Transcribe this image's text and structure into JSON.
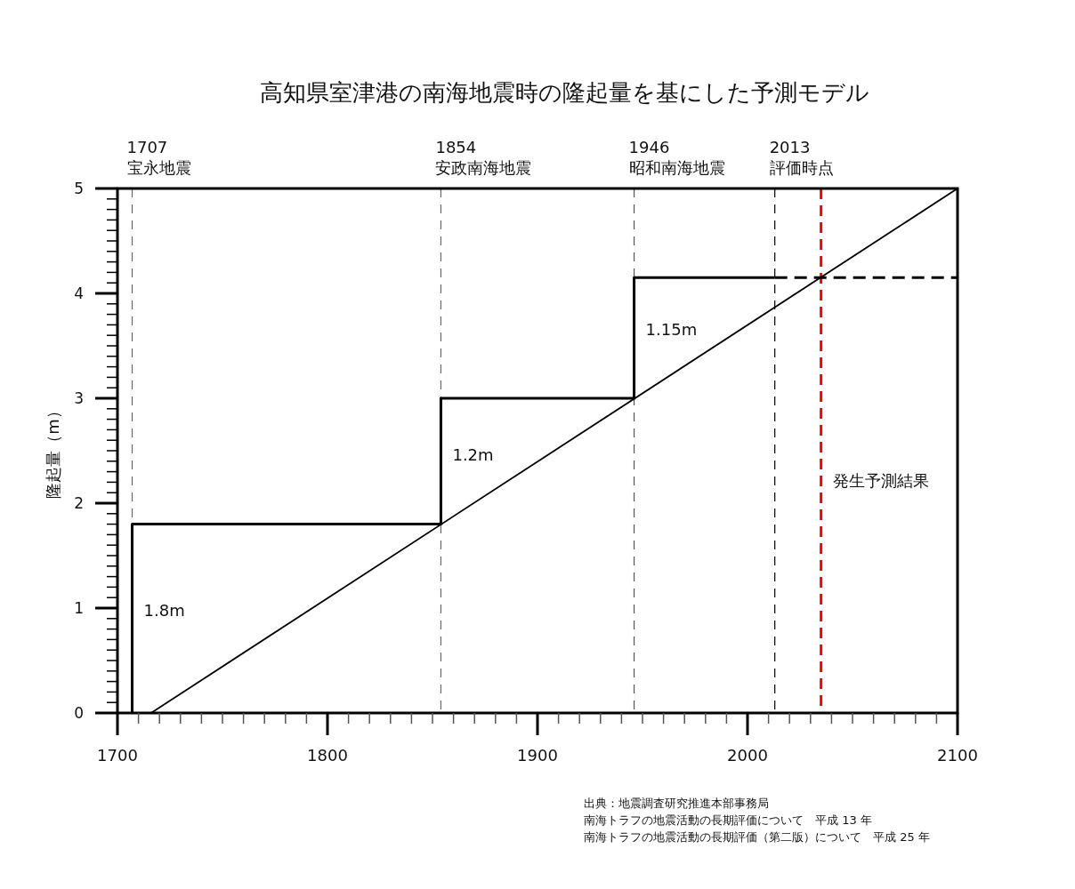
{
  "chart_data": {
    "type": "line",
    "title": "高知県室津港の南海地震時の隆起量を基にした予測モデル",
    "ylabel": "隆起量（m）",
    "xlim": [
      1700,
      2100
    ],
    "ylim": [
      0,
      5
    ],
    "xticks": [
      1700,
      {
        "value": 1710,
        "label": null
      },
      {
        "value": 1720,
        "label": null
      },
      {
        "value": 1730,
        "label": null
      },
      {
        "value": 1740,
        "label": null
      },
      {
        "value": 1750,
        "label": null
      },
      {
        "value": 1760,
        "label": null
      },
      {
        "value": 1770,
        "label": null
      },
      {
        "value": 1780,
        "label": null
      },
      {
        "value": 1790,
        "label": null
      },
      1800,
      {
        "value": 1810,
        "label": null
      },
      {
        "value": 1820,
        "label": null
      },
      {
        "value": 1830,
        "label": null
      },
      {
        "value": 1840,
        "label": null
      },
      {
        "value": 1850,
        "label": null
      },
      {
        "value": 1860,
        "label": null
      },
      {
        "value": 1870,
        "label": null
      },
      {
        "value": 1880,
        "label": null
      },
      {
        "value": 1890,
        "label": null
      },
      1900,
      {
        "value": 1910,
        "label": null
      },
      {
        "value": 1920,
        "label": null
      },
      {
        "value": 1930,
        "label": null
      },
      {
        "value": 1940,
        "label": null
      },
      {
        "value": 1950,
        "label": null
      },
      {
        "value": 1960,
        "label": null
      },
      {
        "value": 1970,
        "label": null
      },
      {
        "value": 1980,
        "label": null
      },
      {
        "value": 1990,
        "label": null
      },
      2000,
      {
        "value": 2010,
        "label": null
      },
      {
        "value": 2020,
        "label": null
      },
      {
        "value": 2030,
        "label": null
      },
      {
        "value": 2040,
        "label": null
      },
      {
        "value": 2050,
        "label": null
      },
      {
        "value": 2060,
        "label": null
      },
      {
        "value": 2070,
        "label": null
      },
      {
        "value": 2080,
        "label": null
      },
      {
        "value": 2090,
        "label": null
      },
      2100
    ],
    "yticks": [
      0,
      {
        "value": 0.1,
        "label": null
      },
      {
        "value": 0.2,
        "label": null
      },
      {
        "value": 0.3,
        "label": null
      },
      {
        "value": 0.4,
        "label": null
      },
      {
        "value": 0.5,
        "label": null
      },
      {
        "value": 0.6,
        "label": null
      },
      {
        "value": 0.7,
        "label": null
      },
      {
        "value": 0.8,
        "label": null
      },
      {
        "value": 0.9,
        "label": null
      },
      1,
      {
        "value": 1.1,
        "label": null
      },
      {
        "value": 1.2,
        "label": null
      },
      {
        "value": 1.3,
        "label": null
      },
      {
        "value": 1.4,
        "label": null
      },
      {
        "value": 1.5,
        "label": null
      },
      {
        "value": 1.6,
        "label": null
      },
      {
        "value": 1.7,
        "label": null
      },
      {
        "value": 1.8,
        "label": null
      },
      {
        "value": 1.9,
        "label": null
      },
      2,
      {
        "value": 2.1,
        "label": null
      },
      {
        "value": 2.2,
        "label": null
      },
      {
        "value": 2.3,
        "label": null
      },
      {
        "value": 2.4,
        "label": null
      },
      {
        "value": 2.5,
        "label": null
      },
      {
        "value": 2.6,
        "label": null
      },
      {
        "value": 2.7,
        "label": null
      },
      {
        "value": 2.8,
        "label": null
      },
      {
        "value": 2.9,
        "label": null
      },
      3,
      {
        "value": 3.1,
        "label": null
      },
      {
        "value": 3.2,
        "label": null
      },
      {
        "value": 3.3,
        "label": null
      },
      {
        "value": 3.4,
        "label": null
      },
      {
        "value": 3.5,
        "label": null
      },
      {
        "value": 3.6,
        "label": null
      },
      {
        "value": 3.7,
        "label": null
      },
      {
        "value": 3.8,
        "label": null
      },
      {
        "value": 3.9,
        "label": null
      },
      4,
      {
        "value": 4.1,
        "label": null
      },
      {
        "value": 4.2,
        "label": null
      },
      {
        "value": 4.3,
        "label": null
      },
      {
        "value": 4.4,
        "label": null
      },
      {
        "value": 4.5,
        "label": null
      },
      {
        "value": 4.6,
        "label": null
      },
      {
        "value": 4.7,
        "label": null
      },
      {
        "value": 4.8,
        "label": null
      },
      {
        "value": 4.9,
        "label": null
      },
      5
    ],
    "grid": false,
    "marker": "none",
    "series": [
      {
        "type": "step",
        "color": "#000000",
        "x": [
          1707,
          1707,
          1854,
          1946,
          2013
        ],
        "values": [
          0,
          1.8,
          3,
          4.15,
          4.15
        ]
      },
      {
        "type": "line",
        "color": "#000000",
        "line_style": "dashed",
        "x": [
          2013,
          2100
        ],
        "values": [
          4.15,
          4.15
        ]
      },
      {
        "type": "line",
        "color": "#000000",
        "x": [
          1716,
          2100
        ],
        "values": [
          0,
          5
        ]
      }
    ],
    "ref_lines": [
      {
        "axis": "x",
        "value": 1707,
        "label": "1707\n宝永地震",
        "color": "#666666",
        "line_style": "dashed"
      },
      {
        "axis": "x",
        "value": 1854,
        "label": "1854\n安政南海地震",
        "color": "#666666",
        "line_style": "dashed"
      },
      {
        "axis": "x",
        "value": 1946,
        "label": "1946\n昭和南海地震",
        "color": "#555555",
        "line_style": "dashed"
      },
      {
        "axis": "x",
        "value": 2013,
        "label": "2013\n評価時点",
        "color": "#000000",
        "line_style": "dashed"
      },
      {
        "axis": "x",
        "value": 2035,
        "color": "#ff0000",
        "line_style": "dashed"
      }
    ],
    "annotations": [
      {
        "text": "1.8m",
        "x": 1707,
        "y": 0.98
      },
      {
        "text": "1.2m",
        "x": 1854,
        "y": 2.47
      },
      {
        "text": "1.15m",
        "x": 1946,
        "y": 3.66
      },
      {
        "text": "発生予測結果",
        "x": 2035,
        "y": 2.22
      },
      "出典：地震調査研究推進本部事務局",
      "南海トラフの地震活動の長期評価について　平成 13 年",
      "南海トラフの地震活動の長期評価（第二版）について　平成 25 年"
    ]
  }
}
